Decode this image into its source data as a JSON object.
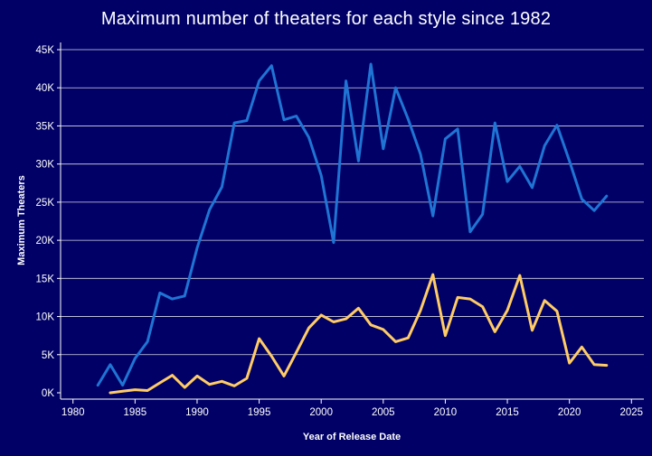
{
  "colors": {
    "background": "#000066",
    "text": "#ffffff",
    "gridline": "#d8d8e8",
    "series_blue": "#1f74d4",
    "series_yellow": "#ffcc66"
  },
  "chart_data": {
    "type": "line",
    "title": "Maximum number of theaters for each style since 1982",
    "xlabel": "Year of Release Date",
    "ylabel": "Maximum Theaters",
    "xlim": [
      1979,
      2026
    ],
    "ylim": [
      0,
      45000
    ],
    "xticks": [
      1980,
      1985,
      1990,
      1995,
      2000,
      2005,
      2010,
      2015,
      2020,
      2025
    ],
    "xtick_labels": [
      "1980",
      "1985",
      "1990",
      "1995",
      "2000",
      "2005",
      "2010",
      "2015",
      "2020",
      "2025"
    ],
    "yticks": [
      0,
      5000,
      10000,
      15000,
      20000,
      25000,
      30000,
      35000,
      40000,
      45000
    ],
    "ytick_labels": [
      "0K",
      "5K",
      "10K",
      "15K",
      "20K",
      "25K",
      "30K",
      "35K",
      "40K",
      "45K"
    ],
    "grid": "horizontal",
    "legend": "none",
    "series": [
      {
        "color": "#1f74d4",
        "x": [
          1982,
          1983,
          1984,
          1985,
          1986,
          1987,
          1988,
          1989,
          1990,
          1991,
          1992,
          1993,
          1994,
          1995,
          1996,
          1997,
          1998,
          1999,
          2000,
          2001,
          2002,
          2003,
          2004,
          2005,
          2006,
          2007,
          2008,
          2009,
          2010,
          2011,
          2012,
          2013,
          2014,
          2015,
          2016,
          2017,
          2018,
          2019,
          2020,
          2021,
          2022,
          2023
        ],
        "y": [
          1000,
          3700,
          1000,
          4500,
          6700,
          13100,
          12300,
          12700,
          19000,
          24000,
          27000,
          35400,
          35700,
          40900,
          42900,
          35800,
          36300,
          33500,
          28500,
          19700,
          40900,
          30400,
          43100,
          32000,
          40000,
          35900,
          31300,
          23200,
          33300,
          34600,
          21100,
          23400,
          35400,
          27700,
          29700,
          26900,
          32400,
          35100,
          30400,
          25400,
          23900,
          25800
        ]
      },
      {
        "color": "#ffcc66",
        "x": [
          1983,
          1984,
          1985,
          1986,
          1987,
          1988,
          1989,
          1990,
          1991,
          1992,
          1993,
          1994,
          1995,
          1996,
          1997,
          1998,
          1999,
          2000,
          2001,
          2002,
          2003,
          2004,
          2005,
          2006,
          2007,
          2008,
          2009,
          2010,
          2011,
          2012,
          2013,
          2014,
          2015,
          2016,
          2017,
          2018,
          2019,
          2020,
          2021,
          2022,
          2023
        ],
        "y": [
          0,
          200,
          400,
          300,
          1300,
          2300,
          700,
          2200,
          1100,
          1500,
          900,
          1900,
          7100,
          4800,
          2200,
          5300,
          8500,
          10200,
          9300,
          9700,
          11100,
          8900,
          8300,
          6700,
          7200,
          10800,
          15500,
          7500,
          12500,
          12300,
          11300,
          8000,
          10800,
          15400,
          8200,
          12100,
          10700,
          3900,
          6000,
          3700,
          3600
        ]
      }
    ]
  }
}
